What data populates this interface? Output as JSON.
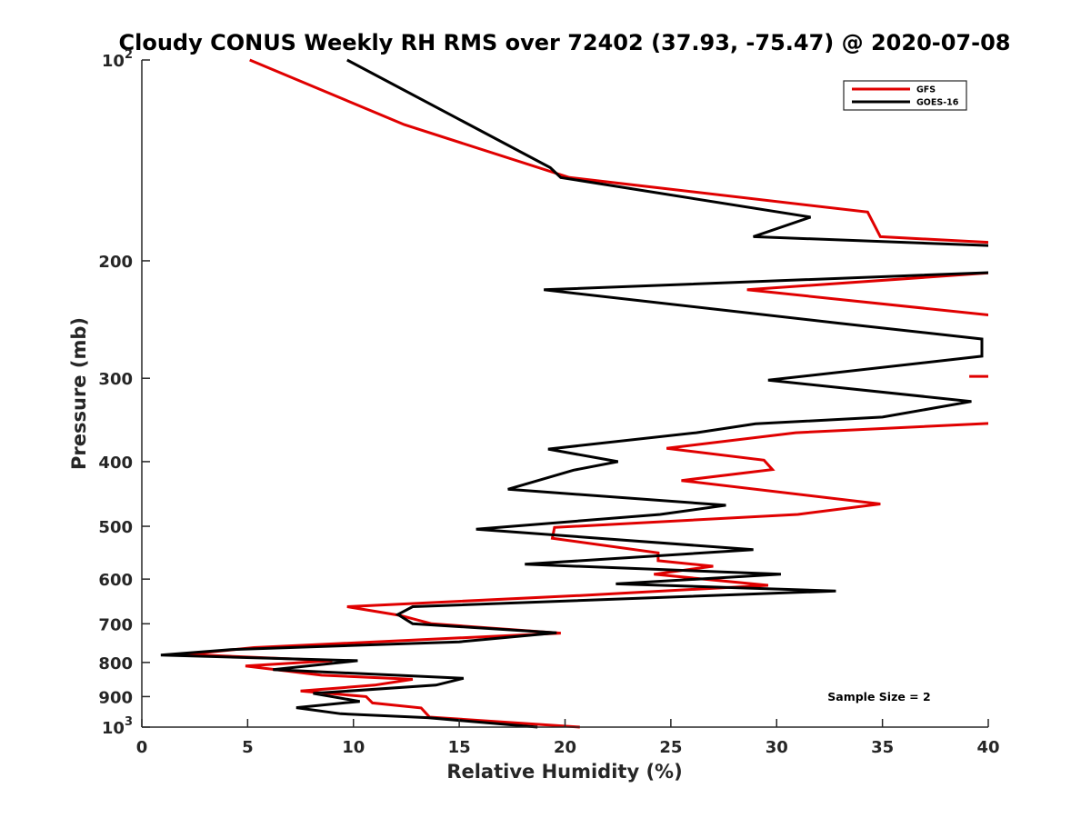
{
  "chart_data": {
    "type": "line",
    "title": "Cloudy CONUS Weekly RH RMS over 72402 (37.93, -75.47) @ 2020-07-08",
    "xlabel": "Relative Humidity (%)",
    "ylabel": "Pressure (mb)",
    "xlim": [
      0,
      40
    ],
    "ylim": [
      100,
      1000
    ],
    "y_scale": "log",
    "y_reversed": true,
    "grid": false,
    "legend_position": "top-right",
    "x_ticks": [
      "0",
      "5",
      "10",
      "15",
      "20",
      "25",
      "30",
      "35",
      "40"
    ],
    "y_ticks": [
      {
        "value": 100,
        "base": "10",
        "exp": "2"
      },
      {
        "value": 200,
        "label": "200"
      },
      {
        "value": 300,
        "label": "300"
      },
      {
        "value": 400,
        "label": "400"
      },
      {
        "value": 500,
        "label": "500"
      },
      {
        "value": 600,
        "label": "600"
      },
      {
        "value": 700,
        "label": "700"
      },
      {
        "value": 800,
        "label": "800"
      },
      {
        "value": 900,
        "label": "900"
      },
      {
        "value": 1000,
        "base": "10",
        "exp": "3"
      }
    ],
    "annotation": "Sample Size = 2",
    "series": [
      {
        "name": "GFS",
        "color": "#e00000",
        "points": [
          [
            5.1,
            100
          ],
          [
            12.4,
            125
          ],
          [
            20.2,
            150
          ],
          [
            34.3,
            169
          ],
          [
            34.9,
            184
          ],
          [
            40.5,
            188
          ],
          [
            null,
            null
          ],
          [
            40.5,
            208
          ],
          [
            28.6,
            221
          ],
          [
            40.5,
            242
          ],
          [
            null,
            null
          ],
          [
            39.1,
            298
          ],
          [
            40.5,
            298
          ],
          [
            null,
            null
          ],
          [
            40.5,
            350
          ],
          [
            30.9,
            362
          ],
          [
            24.8,
            382
          ],
          [
            29.4,
            398
          ],
          [
            29.8,
            411
          ],
          [
            25.5,
            427
          ],
          [
            34.9,
            463
          ],
          [
            31.0,
            480
          ],
          [
            19.5,
            502
          ],
          [
            19.4,
            521
          ],
          [
            24.4,
            548
          ],
          [
            24.4,
            563
          ],
          [
            27.0,
            574
          ],
          [
            24.2,
            590
          ],
          [
            29.6,
            613
          ],
          [
            20.7,
            635
          ],
          [
            9.7,
            660
          ],
          [
            12.2,
            680
          ],
          [
            13.7,
            700
          ],
          [
            19.8,
            723
          ],
          [
            5.3,
            760
          ],
          [
            2.1,
            778
          ],
          [
            9.0,
            795
          ],
          [
            4.9,
            810
          ],
          [
            8.5,
            836
          ],
          [
            12.8,
            848
          ],
          [
            11.0,
            865
          ],
          [
            7.5,
            883
          ],
          [
            10.6,
            900
          ],
          [
            10.9,
            920
          ],
          [
            13.2,
            936
          ],
          [
            13.6,
            966
          ],
          [
            20.7,
            1000
          ]
        ]
      },
      {
        "name": "GOES-16",
        "color": "#000000",
        "points": [
          [
            9.7,
            100
          ],
          [
            19.3,
            145
          ],
          [
            19.8,
            150
          ],
          [
            31.6,
            172
          ],
          [
            28.9,
            184
          ],
          [
            40.5,
            190
          ],
          [
            null,
            null
          ],
          [
            40.5,
            208
          ],
          [
            19.0,
            221
          ],
          [
            32.9,
            248
          ],
          [
            39.7,
            262
          ],
          [
            39.7,
            278
          ],
          [
            29.6,
            302
          ],
          [
            39.2,
            325
          ],
          [
            35.0,
            343
          ],
          [
            29.0,
            351
          ],
          [
            26.2,
            362
          ],
          [
            19.2,
            383
          ],
          [
            22.5,
            400
          ],
          [
            20.4,
            412
          ],
          [
            17.3,
            440
          ],
          [
            27.6,
            465
          ],
          [
            24.5,
            480
          ],
          [
            15.8,
            505
          ],
          [
            28.9,
            542
          ],
          [
            18.1,
            570
          ],
          [
            30.2,
            590
          ],
          [
            22.4,
            610
          ],
          [
            32.8,
            625
          ],
          [
            12.8,
            660
          ],
          [
            12.1,
            678
          ],
          [
            12.8,
            700
          ],
          [
            19.6,
            722
          ],
          [
            15.0,
            745
          ],
          [
            4.3,
            765
          ],
          [
            0.9,
            780
          ],
          [
            10.2,
            795
          ],
          [
            6.2,
            820
          ],
          [
            15.2,
            845
          ],
          [
            13.9,
            865
          ],
          [
            8.1,
            890
          ],
          [
            10.3,
            915
          ],
          [
            7.3,
            935
          ],
          [
            9.4,
            955
          ],
          [
            13.5,
            968
          ],
          [
            18.7,
            1000
          ]
        ]
      }
    ]
  }
}
